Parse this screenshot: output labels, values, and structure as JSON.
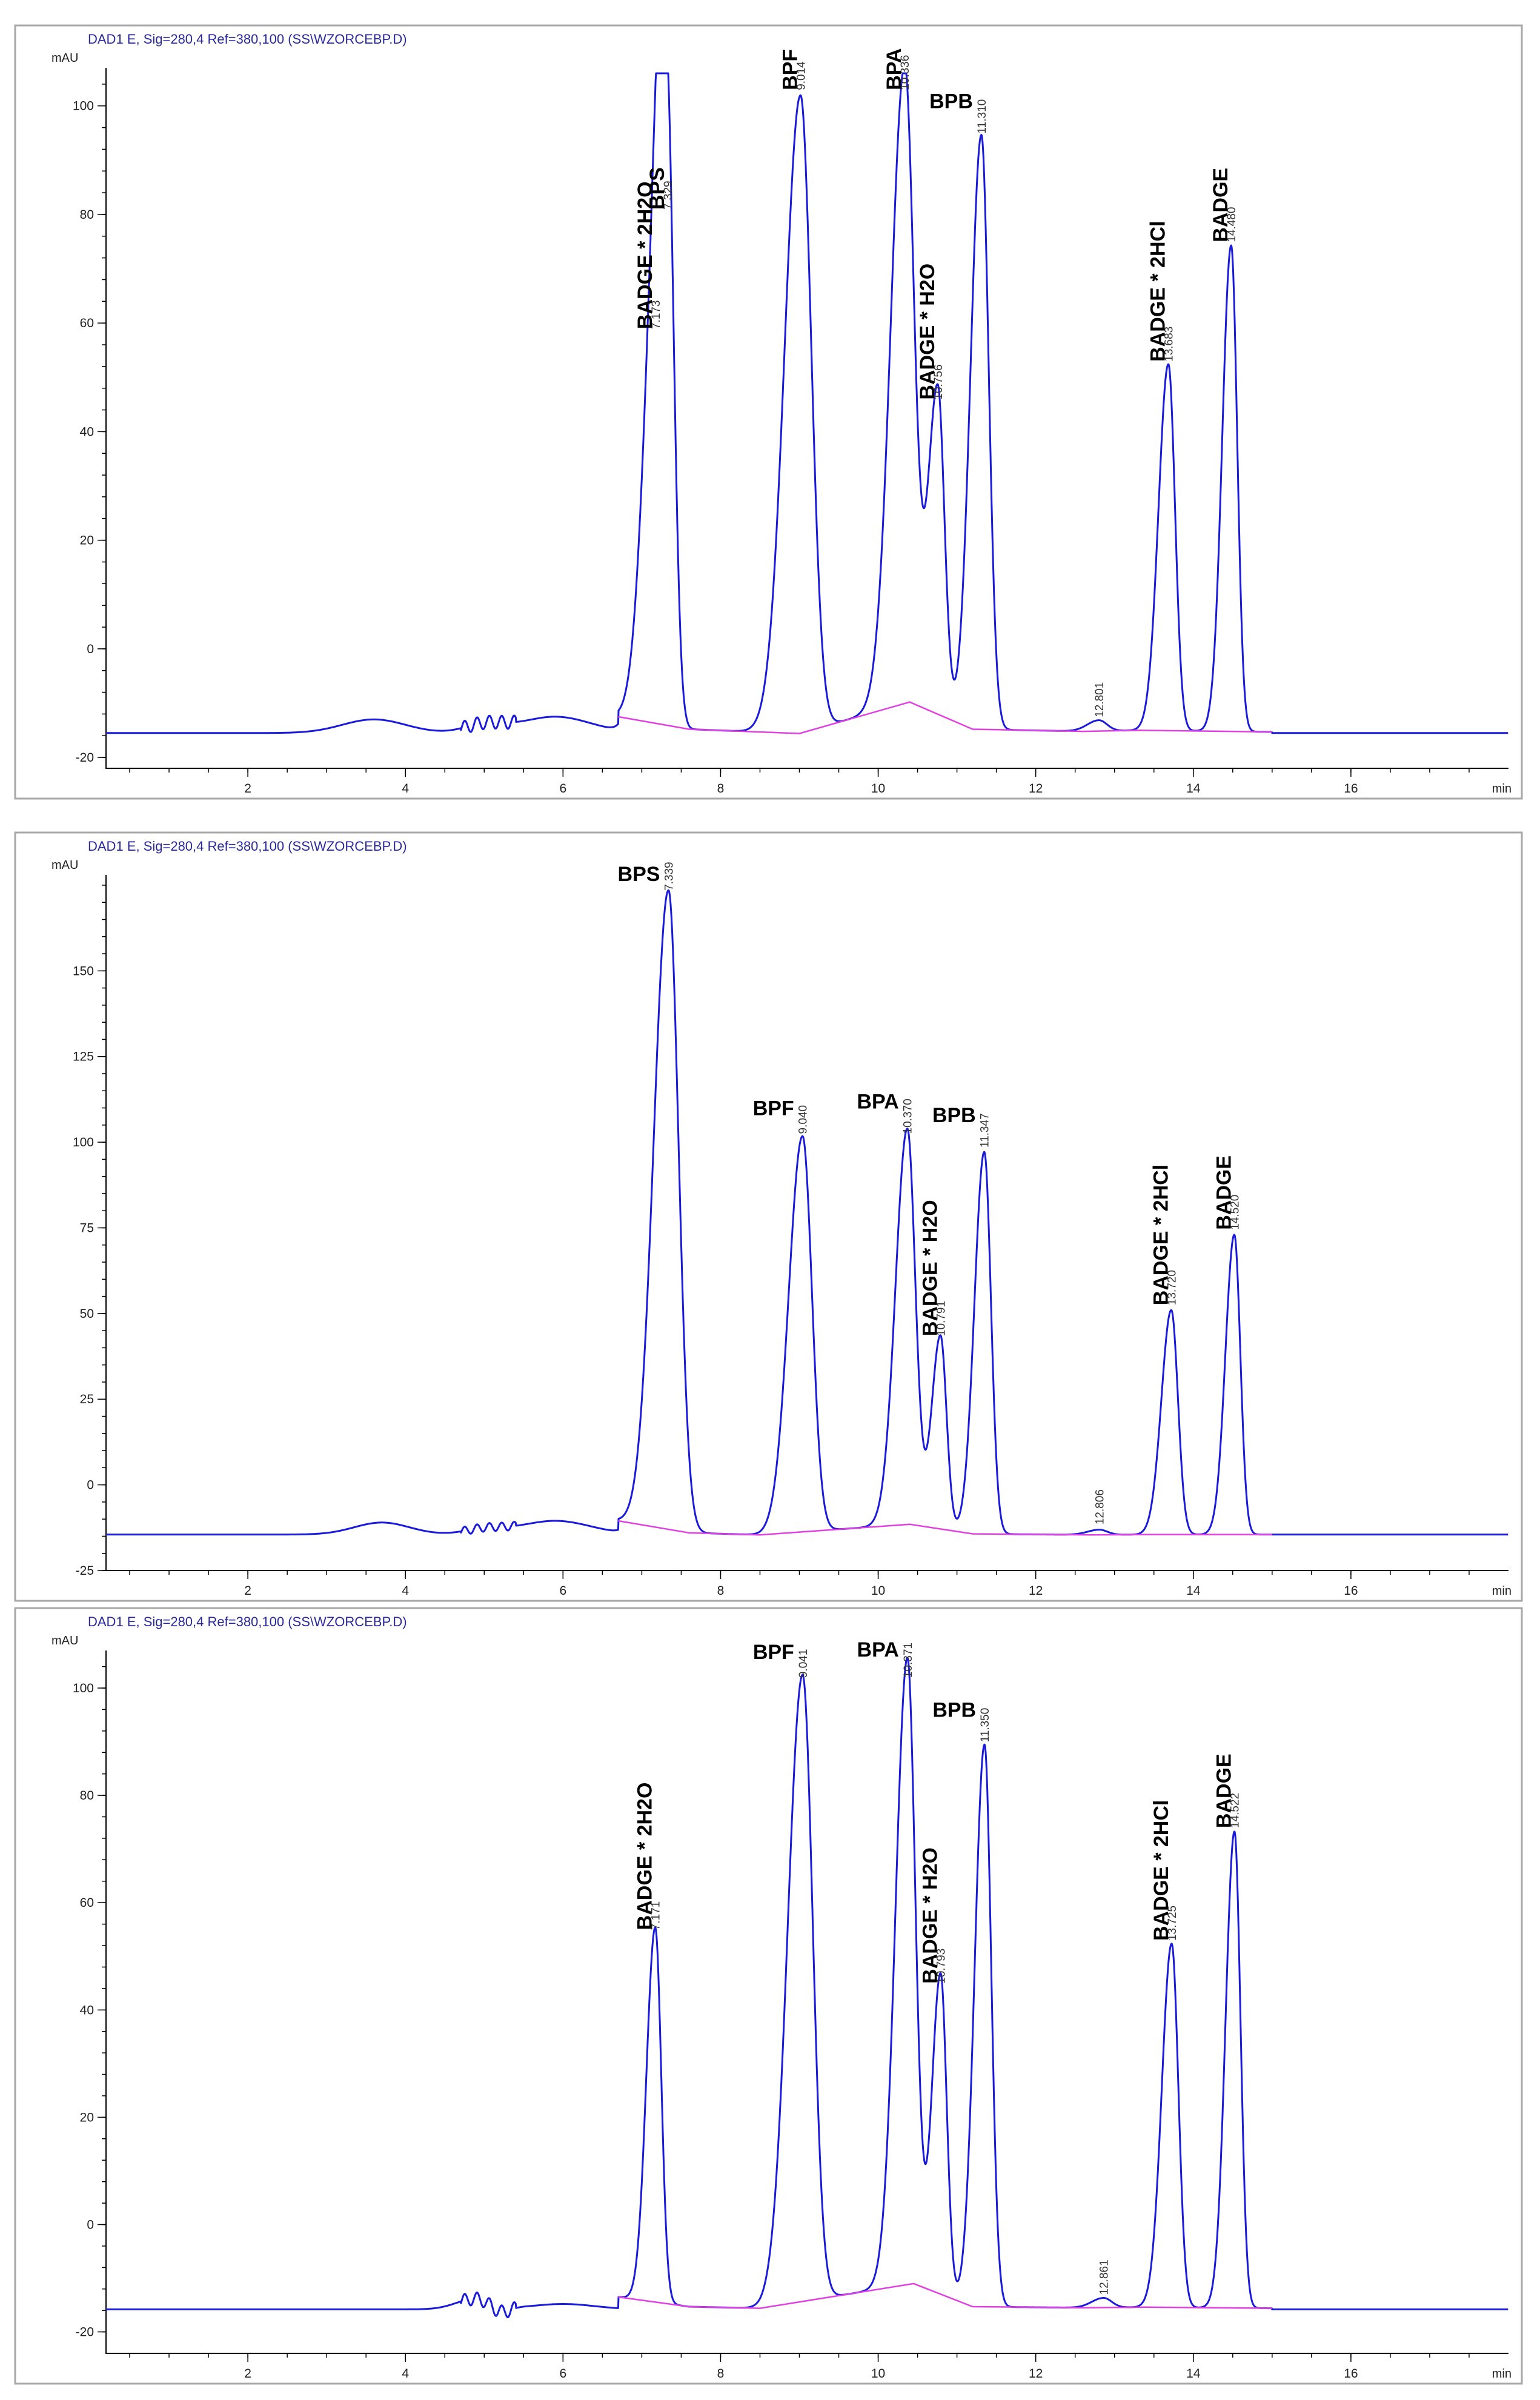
{
  "chart_data": [
    {
      "type": "line",
      "header": "DAD1 E, Sig=280,4 Ref=380,100 (SS\\WZORCEBP.D)",
      "ylabel": "mAU",
      "xlabel": "min",
      "xlim": [
        0.2,
        18.0
      ],
      "ylim": [
        -22,
        107
      ],
      "xticks": [
        2,
        4,
        6,
        8,
        10,
        12,
        14,
        16
      ],
      "yticks": [
        -20,
        0,
        20,
        40,
        60,
        80,
        100
      ],
      "baseline_level": -15.5,
      "baseline_segments": [
        {
          "x": [
            6.7,
            7.6,
            9.0,
            10.4,
            11.2,
            12.6,
            13.3,
            15.0
          ],
          "y": [
            -12.5,
            -14.8,
            -15.6,
            -9.8,
            -14.8,
            -15.2,
            -15.0,
            -15.3
          ]
        }
      ],
      "peaks": [
        {
          "rt_label": "7.173",
          "x": 7.173,
          "height": 58,
          "name": "BADGE * 2H2O",
          "w": 0.13,
          "label_rotated": true
        },
        {
          "rt_label": "7.329",
          "x": 7.329,
          "height": 80,
          "name": "BPS",
          "w": 0.1,
          "label_rotated": true
        },
        {
          "rt_label": "9.014",
          "x": 9.014,
          "height": 102,
          "name": "BPF",
          "w": 0.16,
          "label_rotated": true
        },
        {
          "rt_label": "10.336",
          "x": 10.336,
          "height": 102,
          "name": "BPA",
          "w": 0.14,
          "label_rotated": true
        },
        {
          "rt_label": "10.756",
          "x": 10.756,
          "height": 45,
          "name": "BADGE * H2O",
          "w": 0.1,
          "label_rotated": true
        },
        {
          "rt_label": "11.310",
          "x": 11.31,
          "height": 94,
          "name": "BPB",
          "w": 0.11,
          "label_rotated": false
        },
        {
          "rt_label": "12.801",
          "x": 12.801,
          "height": -13.5,
          "name": "",
          "w": 0.12,
          "label_rotated": true
        },
        {
          "rt_label": "13.683",
          "x": 13.683,
          "height": 52,
          "name": "BADGE * 2HCl",
          "w": 0.1,
          "label_rotated": true
        },
        {
          "rt_label": "14.480",
          "x": 14.48,
          "height": 74,
          "name": "BADGE",
          "w": 0.09,
          "label_rotated": true
        }
      ],
      "bumps": [
        {
          "x": 3.6,
          "y": 2.5,
          "w": 0.4
        },
        {
          "x": 5.0,
          "y": 1.5,
          "w": 0.25
        },
        {
          "x": 5.9,
          "y": 3.0,
          "w": 0.45
        }
      ]
    },
    {
      "type": "line",
      "header": "DAD1 E, Sig=280,4 Ref=380,100 (SS\\WZORCEBP.D)",
      "ylabel": "mAU",
      "xlabel": "min",
      "xlim": [
        0.2,
        18.0
      ],
      "ylim": [
        -25,
        178
      ],
      "xticks": [
        2,
        4,
        6,
        8,
        10,
        12,
        14,
        16
      ],
      "yticks": [
        -25,
        0,
        25,
        50,
        75,
        100,
        125,
        150
      ],
      "baseline_level": -14.5,
      "baseline_segments": [
        {
          "x": [
            6.7,
            7.6,
            8.5,
            10.4,
            11.2,
            12.7,
            13.4,
            15.0
          ],
          "y": [
            -10.5,
            -14.0,
            -14.6,
            -11.5,
            -14.3,
            -14.6,
            -14.5,
            -14.5
          ]
        }
      ],
      "peaks": [
        {
          "rt_label": "7.339",
          "x": 7.339,
          "height": 172,
          "name": "BPS",
          "w": 0.15,
          "label_rotated": false
        },
        {
          "rt_label": "9.040",
          "x": 9.04,
          "height": 101,
          "name": "BPF",
          "w": 0.14,
          "label_rotated": false
        },
        {
          "rt_label": "10.370",
          "x": 10.37,
          "height": 101,
          "name": "BPA",
          "w": 0.12,
          "label_rotated": false
        },
        {
          "rt_label": "10.791",
          "x": 10.791,
          "height": 42,
          "name": "BADGE * H2O",
          "w": 0.09,
          "label_rotated": true
        },
        {
          "rt_label": "11.347",
          "x": 11.347,
          "height": 97,
          "name": "BPB",
          "w": 0.1,
          "label_rotated": false
        },
        {
          "rt_label": "12.806",
          "x": 12.806,
          "height": -13,
          "name": "",
          "w": 0.12,
          "label_rotated": true
        },
        {
          "rt_label": "13.720",
          "x": 13.72,
          "height": 51,
          "name": "BADGE * 2HCl",
          "w": 0.1,
          "label_rotated": true
        },
        {
          "rt_label": "14.520",
          "x": 14.52,
          "height": 73,
          "name": "BADGE",
          "w": 0.09,
          "label_rotated": true
        }
      ],
      "bumps": [
        {
          "x": 3.7,
          "y": 3.5,
          "w": 0.35
        },
        {
          "x": 5.0,
          "y": 1.5,
          "w": 0.25
        },
        {
          "x": 5.9,
          "y": 4.0,
          "w": 0.45
        }
      ]
    },
    {
      "type": "line",
      "header": "DAD1 E, Sig=280,4 Ref=380,100 (SS\\WZORCEBP.D)",
      "ylabel": "mAU",
      "xlabel": "min",
      "xlim": [
        0.2,
        18.0
      ],
      "ylim": [
        -24,
        107
      ],
      "xticks": [
        2,
        4,
        6,
        8,
        10,
        12,
        14,
        16
      ],
      "yticks": [
        -20,
        0,
        20,
        40,
        60,
        80,
        100
      ],
      "baseline_level": -15.8,
      "baseline_segments": [
        {
          "x": [
            6.7,
            7.6,
            8.5,
            10.45,
            11.2,
            12.6,
            13.4,
            15.0
          ],
          "y": [
            -13.5,
            -15.3,
            -15.6,
            -11.0,
            -15.3,
            -15.5,
            -15.4,
            -15.6
          ]
        }
      ],
      "peaks": [
        {
          "rt_label": "7.171",
          "x": 7.171,
          "height": 54,
          "name": "BADGE * 2H2O",
          "w": 0.09,
          "label_rotated": true
        },
        {
          "rt_label": "9.041",
          "x": 9.041,
          "height": 101,
          "name": "BPF",
          "w": 0.15,
          "label_rotated": false
        },
        {
          "rt_label": "10.371",
          "x": 10.371,
          "height": 101,
          "name": "BPA",
          "w": 0.12,
          "label_rotated": false
        },
        {
          "rt_label": "10.793",
          "x": 10.793,
          "height": 44,
          "name": "BADGE * H2O",
          "w": 0.09,
          "label_rotated": true
        },
        {
          "rt_label": "11.350",
          "x": 11.35,
          "height": 89,
          "name": "BPB",
          "w": 0.1,
          "label_rotated": false
        },
        {
          "rt_label": "12.861",
          "x": 12.861,
          "height": -14,
          "name": "",
          "w": 0.12,
          "label_rotated": true
        },
        {
          "rt_label": "13.725",
          "x": 13.725,
          "height": 52,
          "name": "BADGE * 2HCl",
          "w": 0.1,
          "label_rotated": true
        },
        {
          "rt_label": "14.522",
          "x": 14.522,
          "height": 73,
          "name": "BADGE",
          "w": 0.09,
          "label_rotated": true
        }
      ],
      "bumps": [
        {
          "x": 4.9,
          "y": 2.0,
          "w": 0.25
        },
        {
          "x": 5.2,
          "y": -1.5,
          "w": 0.12
        },
        {
          "x": 6.0,
          "y": 1.0,
          "w": 0.4
        }
      ]
    }
  ]
}
